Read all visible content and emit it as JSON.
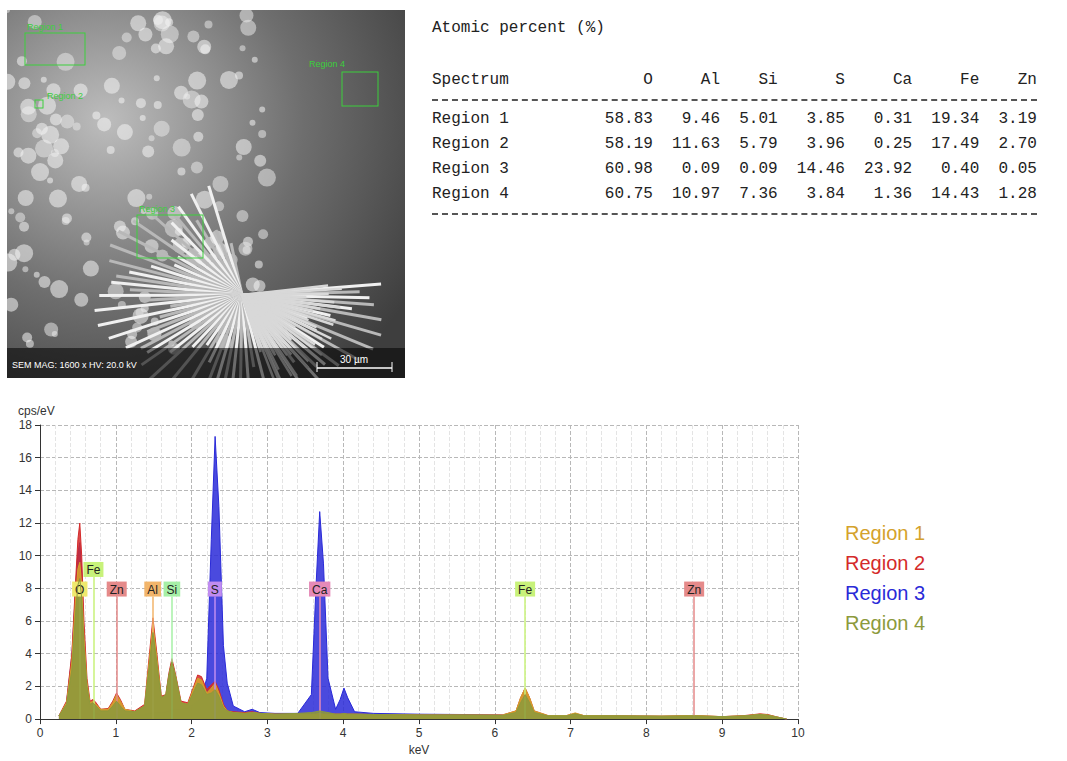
{
  "micrograph": {
    "regions": [
      "Region 1",
      "Region 2",
      "Region 3",
      "Region 4"
    ],
    "info_bar": "SEM MAG: 1600 x   HV: 20.0 kV",
    "scale_bar": "30 µm"
  },
  "table": {
    "title": "Atomic percent (%)",
    "columns": [
      "Spectrum",
      "O",
      "Al",
      "Si",
      "S",
      "Ca",
      "Fe",
      "Zn"
    ],
    "rows": [
      [
        "Region 1",
        "58.83",
        "9.46",
        "5.01",
        "3.85",
        "0.31",
        "19.34",
        "3.19"
      ],
      [
        "Region 2",
        "58.19",
        "11.63",
        "5.79",
        "3.96",
        "0.25",
        "17.49",
        "2.70"
      ],
      [
        "Region 3",
        "60.98",
        "0.09",
        "0.09",
        "14.46",
        "23.92",
        "0.40",
        "0.05"
      ],
      [
        "Region 4",
        "60.75",
        "10.97",
        "7.36",
        "3.84",
        "1.36",
        "14.43",
        "1.28"
      ]
    ]
  },
  "chart_data": {
    "type": "area",
    "x_label": "keV",
    "y_label": "cps/eV",
    "x": [
      0.25,
      0.35,
      0.42,
      0.47,
      0.5,
      0.525,
      0.55,
      0.58,
      0.62,
      0.66,
      0.7,
      0.74,
      0.8,
      0.9,
      0.96,
      1.01,
      1.06,
      1.12,
      1.25,
      1.38,
      1.44,
      1.49,
      1.54,
      1.6,
      1.66,
      1.7,
      1.74,
      1.79,
      1.86,
      1.95,
      2.02,
      2.08,
      2.13,
      2.2,
      2.26,
      2.31,
      2.36,
      2.42,
      2.47,
      2.55,
      2.7,
      2.8,
      2.9,
      3.1,
      3.4,
      3.58,
      3.64,
      3.69,
      3.74,
      3.8,
      3.9,
      3.96,
      4.01,
      4.06,
      4.15,
      4.4,
      5.0,
      5.6,
      6.1,
      6.28,
      6.34,
      6.4,
      6.46,
      6.52,
      6.7,
      6.95,
      7.06,
      7.17,
      7.6,
      8.2,
      8.63,
      9.0,
      9.3,
      9.5,
      9.6,
      9.75,
      9.85
    ],
    "series": [
      {
        "name": "Region 1",
        "color": "#d4a22c",
        "values": [
          0.2,
          1.0,
          3.5,
          7.5,
          9.2,
          9.6,
          8.2,
          5.0,
          2.2,
          1.0,
          1.1,
          0.9,
          0.6,
          0.6,
          1.0,
          1.5,
          1.1,
          0.6,
          0.45,
          0.8,
          3.5,
          5.8,
          3.8,
          1.3,
          1.4,
          2.6,
          3.5,
          2.6,
          1.0,
          0.9,
          1.8,
          2.5,
          2.4,
          1.6,
          1.9,
          2.2,
          1.6,
          0.8,
          0.5,
          0.4,
          0.35,
          0.4,
          0.35,
          0.3,
          0.3,
          0.3,
          0.3,
          0.35,
          0.3,
          0.3,
          0.3,
          0.3,
          0.3,
          0.3,
          0.3,
          0.28,
          0.25,
          0.25,
          0.25,
          0.5,
          1.3,
          1.9,
          1.3,
          0.5,
          0.22,
          0.22,
          0.38,
          0.22,
          0.2,
          0.18,
          0.22,
          0.15,
          0.2,
          0.3,
          0.25,
          0.1,
          0
        ]
      },
      {
        "name": "Region 2",
        "color": "#d42a2a",
        "values": [
          0.2,
          1.1,
          4.0,
          8.5,
          11.0,
          12.0,
          10.0,
          6.0,
          2.5,
          1.1,
          1.2,
          1.0,
          0.6,
          0.65,
          1.1,
          1.6,
          1.2,
          0.6,
          0.5,
          0.9,
          3.8,
          6.2,
          4.1,
          1.4,
          1.5,
          2.8,
          3.7,
          2.7,
          1.1,
          1.0,
          1.9,
          2.7,
          2.6,
          1.8,
          2.1,
          2.3,
          1.8,
          0.9,
          0.5,
          0.45,
          0.4,
          0.45,
          0.35,
          0.3,
          0.3,
          0.3,
          0.3,
          0.3,
          0.3,
          0.3,
          0.3,
          0.3,
          0.3,
          0.3,
          0.3,
          0.28,
          0.25,
          0.25,
          0.25,
          0.5,
          1.3,
          1.9,
          1.3,
          0.5,
          0.22,
          0.22,
          0.35,
          0.22,
          0.2,
          0.18,
          0.22,
          0.15,
          0.22,
          0.32,
          0.28,
          0.1,
          0
        ]
      },
      {
        "name": "Region 3",
        "color": "#2a2ad8",
        "values": [
          0.2,
          1.0,
          3.8,
          8.0,
          10.2,
          10.8,
          9.0,
          5.0,
          1.6,
          0.6,
          0.4,
          0.35,
          0.3,
          0.3,
          0.3,
          0.3,
          0.3,
          0.3,
          0.3,
          0.3,
          0.35,
          0.4,
          0.4,
          0.4,
          0.45,
          0.5,
          0.55,
          0.6,
          0.6,
          0.7,
          0.9,
          1.1,
          1.3,
          2.5,
          11.0,
          17.3,
          13.0,
          4.5,
          2.2,
          0.8,
          0.45,
          0.6,
          0.4,
          0.35,
          0.35,
          1.5,
          8.0,
          12.7,
          9.5,
          2.5,
          0.6,
          1.2,
          1.9,
          1.3,
          0.45,
          0.35,
          0.3,
          0.28,
          0.25,
          0.22,
          0.22,
          0.22,
          0.22,
          0.2,
          0.2,
          0.2,
          0.2,
          0.2,
          0.18,
          0.16,
          0.15,
          0.14,
          0.14,
          0.14,
          0.12,
          0.08,
          0
        ]
      },
      {
        "name": "Region 4",
        "color": "#8c9a3c",
        "values": [
          0.2,
          0.9,
          3.0,
          6.5,
          8.2,
          8.6,
          7.4,
          4.5,
          2.0,
          0.9,
          1.0,
          0.8,
          0.5,
          0.5,
          0.8,
          1.1,
          0.8,
          0.5,
          0.45,
          0.8,
          3.2,
          5.3,
          3.5,
          1.3,
          1.5,
          2.7,
          3.5,
          2.6,
          1.0,
          0.9,
          1.6,
          2.2,
          2.1,
          1.5,
          1.6,
          1.8,
          1.4,
          0.7,
          0.5,
          0.4,
          0.35,
          0.4,
          0.35,
          0.3,
          0.35,
          0.4,
          0.45,
          0.5,
          0.45,
          0.4,
          0.3,
          0.3,
          0.35,
          0.3,
          0.3,
          0.28,
          0.25,
          0.25,
          0.22,
          0.4,
          1.0,
          1.5,
          1.0,
          0.4,
          0.2,
          0.2,
          0.32,
          0.2,
          0.2,
          0.18,
          0.2,
          0.15,
          0.2,
          0.28,
          0.24,
          0.1,
          0
        ]
      }
    ],
    "xlim": [
      0,
      10
    ],
    "xticks": [
      0,
      1,
      2,
      3,
      4,
      5,
      6,
      7,
      8,
      9,
      10
    ],
    "ylim": [
      0,
      18
    ],
    "yticks": [
      0,
      2,
      4,
      6,
      8,
      10,
      12,
      14,
      16,
      18
    ],
    "grid": true,
    "legend": "right",
    "annotations": [
      {
        "text": "O",
        "x": 0.525,
        "y": 7.5,
        "color": "#efe96e"
      },
      {
        "text": "Fe",
        "x": 0.705,
        "y": 8.7,
        "color": "#c8f27a"
      },
      {
        "text": "Zn",
        "x": 1.012,
        "y": 7.5,
        "color": "#e58a8a"
      },
      {
        "text": "Al",
        "x": 1.486,
        "y": 7.5,
        "color": "#f2b56b"
      },
      {
        "text": "Si",
        "x": 1.74,
        "y": 7.5,
        "color": "#a6f0a6"
      },
      {
        "text": "S",
        "x": 2.307,
        "y": 7.5,
        "color": "#c08cf0"
      },
      {
        "text": "Ca",
        "x": 3.69,
        "y": 7.5,
        "color": "#e68ab8"
      },
      {
        "text": "Fe",
        "x": 6.4,
        "y": 7.5,
        "color": "#c8f27a"
      },
      {
        "text": "Zn",
        "x": 8.63,
        "y": 7.5,
        "color": "#e58a8a"
      }
    ]
  }
}
